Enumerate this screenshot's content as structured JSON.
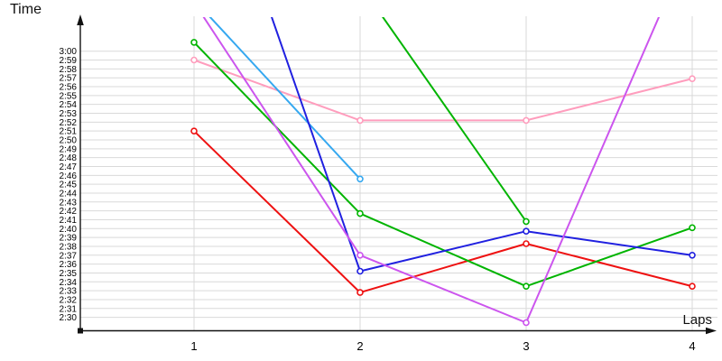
{
  "chart": {
    "y_axis_title": "Time",
    "x_axis_title": "Laps"
  },
  "chart_data": {
    "type": "line",
    "title": "",
    "xlabel": "Laps",
    "ylabel": "Time",
    "grid": true,
    "legend": "none",
    "marker_style": "open-circle",
    "x": [
      1,
      2,
      3,
      4
    ],
    "x_tick_labels": [
      "1",
      "2",
      "3",
      "4"
    ],
    "xlim": [
      1,
      4
    ],
    "y_tick_labels": [
      "3:00",
      "2:59",
      "2:58",
      "2:57",
      "2:56",
      "2:55",
      "2:54",
      "2:53",
      "2:52",
      "2:51",
      "2:50",
      "2:49",
      "2:48",
      "2:47",
      "2:46",
      "2:45",
      "2:44",
      "2:43",
      "2:42",
      "2:41",
      "2:40",
      "2:39",
      "2:38",
      "2:37",
      "2:36",
      "2:35",
      "2:34",
      "2:33",
      "2:32",
      "2:31",
      "2:30"
    ],
    "y_tick_step_seconds": 1,
    "ylim_seconds": [
      148.5,
      183.5
    ],
    "series": [
      {
        "name": "pink",
        "color": "#ff9dbd",
        "points": [
          {
            "lap": 1,
            "time": "2:59.0",
            "seconds": 179.0
          },
          {
            "lap": 2,
            "time": "2:52.2",
            "seconds": 172.2
          },
          {
            "lap": 3,
            "time": "2:52.2",
            "seconds": 172.2
          },
          {
            "lap": 4,
            "time": "2:56.9",
            "seconds": 176.9
          }
        ]
      },
      {
        "name": "red",
        "color": "#ee1111",
        "points": [
          {
            "lap": 1,
            "time": "2:51.0",
            "seconds": 171.0
          },
          {
            "lap": 2,
            "time": "2:32.8",
            "seconds": 152.8
          },
          {
            "lap": 3,
            "time": "2:38.3",
            "seconds": 158.3
          },
          {
            "lap": 4,
            "time": "2:33.5",
            "seconds": 153.5
          }
        ]
      },
      {
        "name": "green",
        "color": "#00b400",
        "points": [
          {
            "lap": 1,
            "time": "3:01.0",
            "seconds": 181.0
          },
          {
            "lap": 2,
            "time": "2:41.7",
            "seconds": 161.7
          },
          {
            "lap": 3,
            "time": "2:33.5",
            "seconds": 153.5
          },
          {
            "lap": 4,
            "time": "2:40.1",
            "seconds": 160.1
          }
        ]
      },
      {
        "name": "green-partial",
        "color": "#00b400",
        "points": [
          {
            "lap": 2,
            "time": "3:07.5",
            "seconds": 187.5,
            "offscale": true
          },
          {
            "lap": 3,
            "time": "2:40.8",
            "seconds": 160.8
          }
        ]
      },
      {
        "name": "light-blue",
        "color": "#35a8f0",
        "points": [
          {
            "lap": 1,
            "time": "3:05.8",
            "seconds": 185.8,
            "offscale": true
          },
          {
            "lap": 2,
            "time": "2:45.6",
            "seconds": 165.6
          }
        ]
      },
      {
        "name": "blue",
        "color": "#2020e0",
        "points": [
          {
            "lap": 1,
            "time": "3:29.0",
            "seconds": 209.0,
            "offscale": true
          },
          {
            "lap": 2,
            "time": "2:35.2",
            "seconds": 155.2
          },
          {
            "lap": 3,
            "time": "2:39.7",
            "seconds": 159.7
          },
          {
            "lap": 4,
            "time": "2:37.0",
            "seconds": 157.0
          }
        ]
      },
      {
        "name": "magenta",
        "color": "#cc55ee",
        "points": [
          {
            "lap": 1,
            "time": "3:05.5",
            "seconds": 185.5,
            "offscale": true
          },
          {
            "lap": 2,
            "time": "2:37.0",
            "seconds": 157.0
          },
          {
            "lap": 3,
            "time": "2:29.4",
            "seconds": 149.4
          },
          {
            "lap": 4,
            "time": "3:12.5",
            "seconds": 192.5,
            "offscale": true
          }
        ]
      }
    ]
  }
}
